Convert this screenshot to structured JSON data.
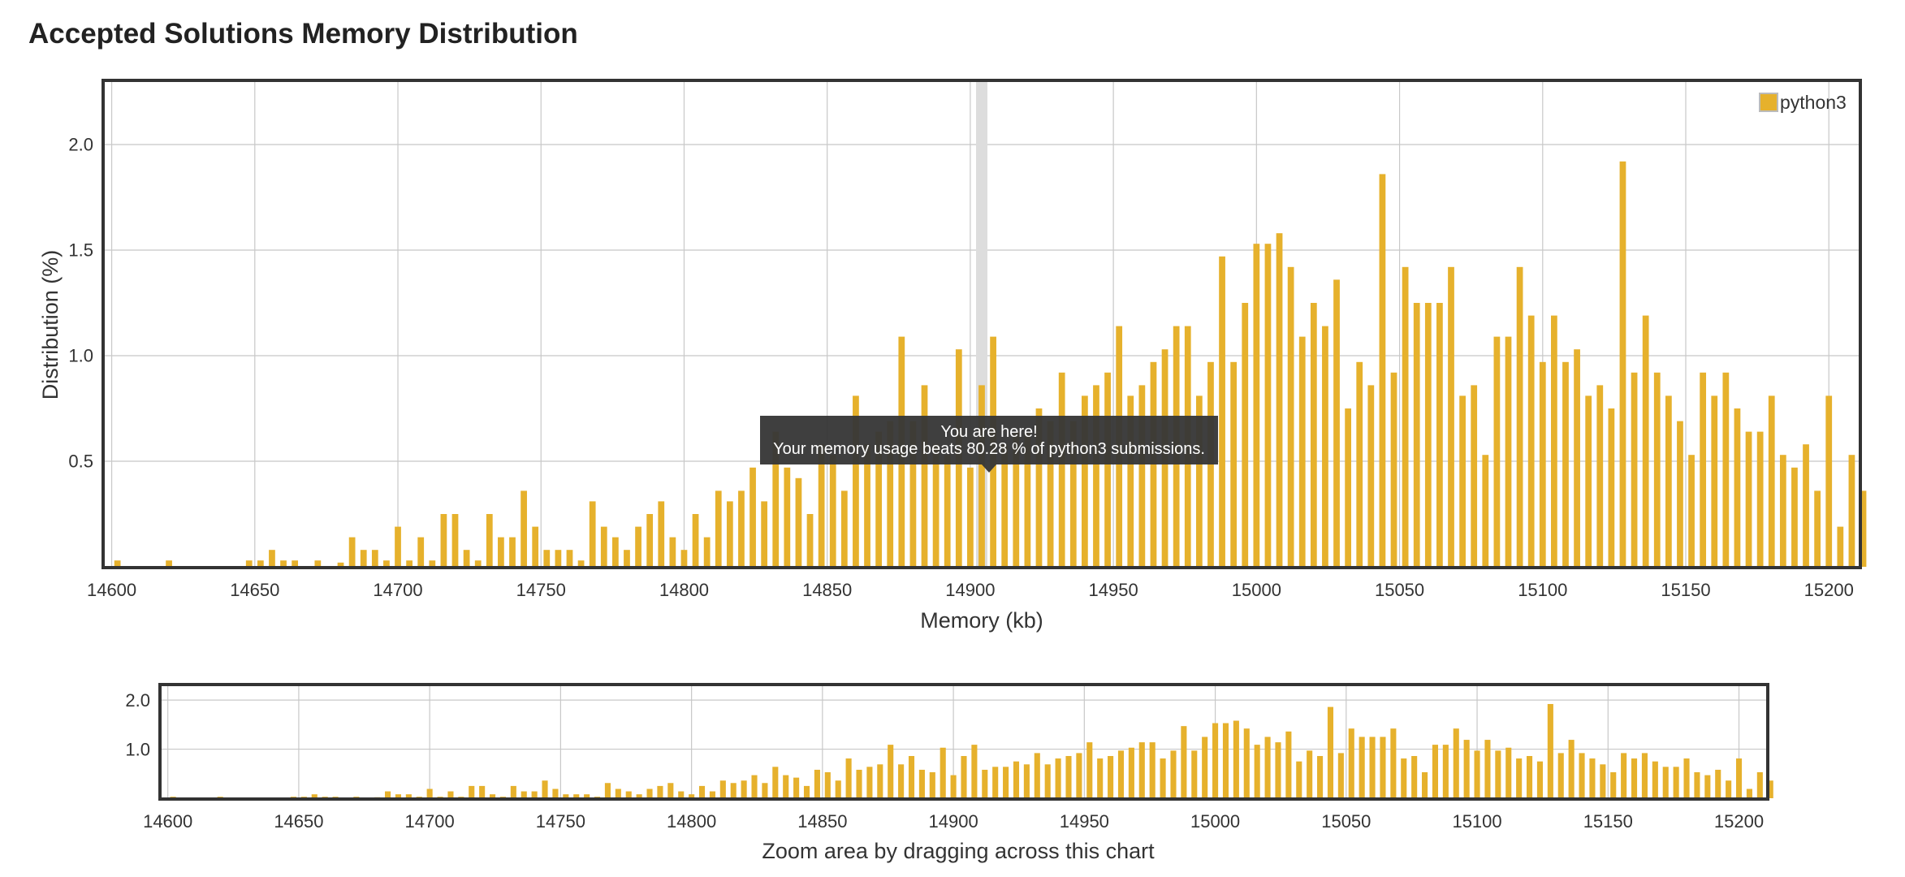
{
  "title": "Accepted Solutions Memory Distribution",
  "colors": {
    "bar": "#E6B12C",
    "frame": "#333333",
    "grid": "#c8c8c8",
    "highlight": "#dddddd"
  },
  "tooltip": {
    "line1": "You are here!",
    "line2": "Your memory usage beats 80.28 % of python3 submissions."
  },
  "chart_data": [
    {
      "type": "bar",
      "name": "main",
      "xlabel": "Memory (kb)",
      "ylabel": "Distribution (%)",
      "xlim": [
        14597,
        15211
      ],
      "ylim": [
        0,
        2.3
      ],
      "x_ticks": [
        14600,
        14650,
        14700,
        14750,
        14800,
        14850,
        14900,
        14950,
        15000,
        15050,
        15100,
        15150,
        15200
      ],
      "y_ticks": [
        0.5,
        1.0,
        1.5,
        2.0
      ],
      "y_tick_labels": [
        "0.5",
        "1.0",
        "1.5",
        "2.0"
      ],
      "grid": true,
      "legend": {
        "position": "top-right",
        "entries": [
          "python3"
        ]
      },
      "highlight_x": 14904,
      "series": [
        {
          "name": "python3",
          "points": [
            [
              14602,
              0.03
            ],
            [
              14620,
              0.03
            ],
            [
              14648,
              0.03
            ],
            [
              14652,
              0.03
            ],
            [
              14656,
              0.08
            ],
            [
              14660,
              0.03
            ],
            [
              14664,
              0.03
            ],
            [
              14672,
              0.03
            ],
            [
              14680,
              0.02
            ],
            [
              14684,
              0.14
            ],
            [
              14688,
              0.08
            ],
            [
              14692,
              0.08
            ],
            [
              14696,
              0.03
            ],
            [
              14700,
              0.19
            ],
            [
              14704,
              0.03
            ],
            [
              14708,
              0.14
            ],
            [
              14712,
              0.03
            ],
            [
              14716,
              0.25
            ],
            [
              14720,
              0.25
            ],
            [
              14724,
              0.08
            ],
            [
              14728,
              0.03
            ],
            [
              14732,
              0.25
            ],
            [
              14736,
              0.14
            ],
            [
              14740,
              0.14
            ],
            [
              14744,
              0.36
            ],
            [
              14748,
              0.19
            ],
            [
              14752,
              0.08
            ],
            [
              14756,
              0.08
            ],
            [
              14760,
              0.08
            ],
            [
              14764,
              0.03
            ],
            [
              14768,
              0.31
            ],
            [
              14772,
              0.19
            ],
            [
              14776,
              0.14
            ],
            [
              14780,
              0.08
            ],
            [
              14784,
              0.19
            ],
            [
              14788,
              0.25
            ],
            [
              14792,
              0.31
            ],
            [
              14796,
              0.14
            ],
            [
              14800,
              0.08
            ],
            [
              14804,
              0.25
            ],
            [
              14808,
              0.14
            ],
            [
              14812,
              0.36
            ],
            [
              14816,
              0.31
            ],
            [
              14820,
              0.36
            ],
            [
              14824,
              0.47
            ],
            [
              14828,
              0.31
            ],
            [
              14832,
              0.64
            ],
            [
              14836,
              0.47
            ],
            [
              14840,
              0.42
            ],
            [
              14844,
              0.25
            ],
            [
              14848,
              0.58
            ],
            [
              14852,
              0.53
            ],
            [
              14856,
              0.36
            ],
            [
              14860,
              0.81
            ],
            [
              14864,
              0.58
            ],
            [
              14868,
              0.64
            ],
            [
              14872,
              0.69
            ],
            [
              14876,
              1.09
            ],
            [
              14880,
              0.69
            ],
            [
              14884,
              0.86
            ],
            [
              14888,
              0.58
            ],
            [
              14892,
              0.53
            ],
            [
              14896,
              1.03
            ],
            [
              14900,
              0.47
            ],
            [
              14904,
              0.86
            ],
            [
              14908,
              1.09
            ],
            [
              14912,
              0.58
            ],
            [
              14916,
              0.64
            ],
            [
              14920,
              0.64
            ],
            [
              14924,
              0.75
            ],
            [
              14928,
              0.69
            ],
            [
              14932,
              0.92
            ],
            [
              14936,
              0.69
            ],
            [
              14940,
              0.81
            ],
            [
              14944,
              0.86
            ],
            [
              14948,
              0.92
            ],
            [
              14952,
              1.14
            ],
            [
              14956,
              0.81
            ],
            [
              14960,
              0.86
            ],
            [
              14964,
              0.97
            ],
            [
              14968,
              1.03
            ],
            [
              14972,
              1.14
            ],
            [
              14976,
              1.14
            ],
            [
              14980,
              0.81
            ],
            [
              14984,
              0.97
            ],
            [
              14988,
              1.47
            ],
            [
              14992,
              0.97
            ],
            [
              14996,
              1.25
            ],
            [
              15000,
              1.53
            ],
            [
              15004,
              1.53
            ],
            [
              15008,
              1.58
            ],
            [
              15012,
              1.42
            ],
            [
              15016,
              1.09
            ],
            [
              15020,
              1.25
            ],
            [
              15024,
              1.14
            ],
            [
              15028,
              1.36
            ],
            [
              15032,
              0.75
            ],
            [
              15036,
              0.97
            ],
            [
              15040,
              0.86
            ],
            [
              15044,
              1.86
            ],
            [
              15048,
              0.92
            ],
            [
              15052,
              1.42
            ],
            [
              15056,
              1.25
            ],
            [
              15060,
              1.25
            ],
            [
              15064,
              1.25
            ],
            [
              15068,
              1.42
            ],
            [
              15072,
              0.81
            ],
            [
              15076,
              0.86
            ],
            [
              15080,
              0.53
            ],
            [
              15084,
              1.09
            ],
            [
              15088,
              1.09
            ],
            [
              15092,
              1.42
            ],
            [
              15096,
              1.19
            ],
            [
              15100,
              0.97
            ],
            [
              15104,
              1.19
            ],
            [
              15108,
              0.97
            ],
            [
              15112,
              1.03
            ],
            [
              15116,
              0.81
            ],
            [
              15120,
              0.86
            ],
            [
              15124,
              0.75
            ],
            [
              15128,
              1.92
            ],
            [
              15132,
              0.92
            ],
            [
              15136,
              1.19
            ],
            [
              15140,
              0.92
            ],
            [
              15144,
              0.81
            ],
            [
              15148,
              0.69
            ],
            [
              15152,
              0.53
            ],
            [
              15156,
              0.92
            ],
            [
              15160,
              0.81
            ],
            [
              15164,
              0.92
            ],
            [
              15168,
              0.75
            ],
            [
              15172,
              0.64
            ],
            [
              15176,
              0.64
            ],
            [
              15180,
              0.81
            ],
            [
              15184,
              0.53
            ],
            [
              15188,
              0.47
            ],
            [
              15192,
              0.58
            ],
            [
              15196,
              0.36
            ],
            [
              15200,
              0.81
            ],
            [
              15204,
              0.19
            ],
            [
              15208,
              0.53
            ],
            [
              15212,
              0.36
            ]
          ]
        }
      ]
    },
    {
      "type": "bar",
      "name": "navigator",
      "xlabel": "Zoom area by dragging across this chart",
      "xlim": [
        14597,
        15211
      ],
      "ylim": [
        0,
        2.3
      ],
      "x_ticks": [
        14600,
        14650,
        14700,
        14750,
        14800,
        14850,
        14900,
        14950,
        15000,
        15050,
        15100,
        15150,
        15200
      ],
      "y_ticks": [
        1.0,
        2.0
      ],
      "y_tick_labels": [
        "1.0",
        "2.0"
      ],
      "grid": true,
      "series_ref": "python3"
    }
  ]
}
